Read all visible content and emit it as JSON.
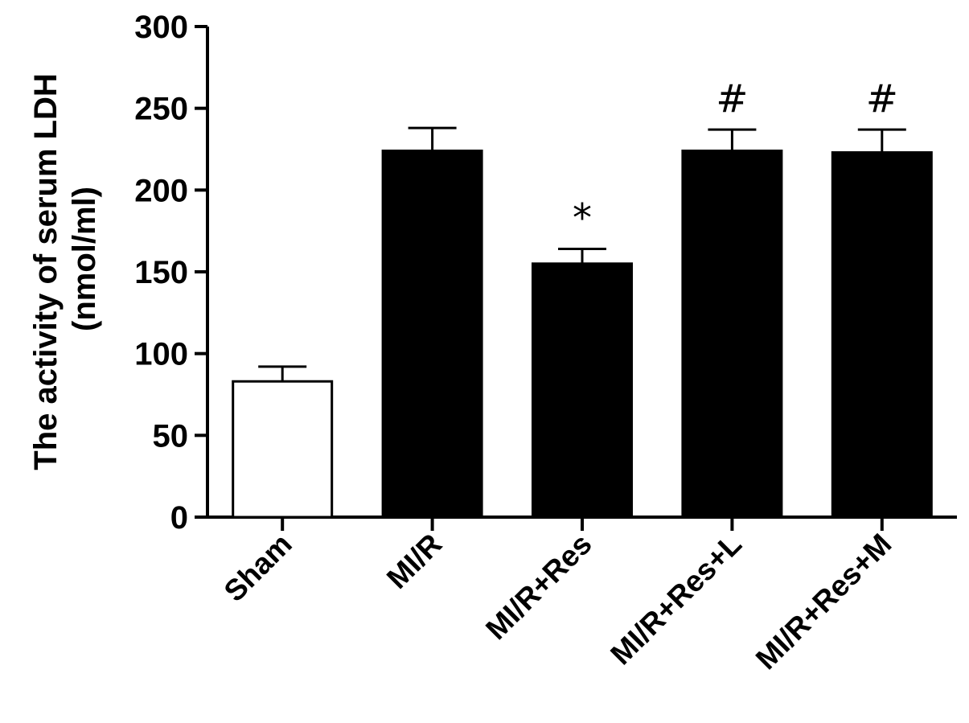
{
  "chart_data": {
    "type": "bar",
    "categories": [
      "Sham",
      "MI/R",
      "MI/R+Res",
      "MI/R+Res+L",
      "MI/R+Res+M"
    ],
    "values": [
      83,
      224,
      155,
      224,
      223
    ],
    "errors": [
      9,
      14,
      9,
      13,
      14
    ],
    "annotations": [
      "",
      "",
      "*",
      "#",
      "#"
    ],
    "fills": [
      "#ffffff",
      "#000000",
      "#000000",
      "#000000",
      "#000000"
    ],
    "ylabel_line1": "The activity of serum LDH",
    "ylabel_line2": "(nmol/ml)",
    "ylim": [
      0,
      300
    ],
    "yticks": [
      0,
      50,
      100,
      150,
      200,
      250,
      300
    ],
    "grid": false
  }
}
